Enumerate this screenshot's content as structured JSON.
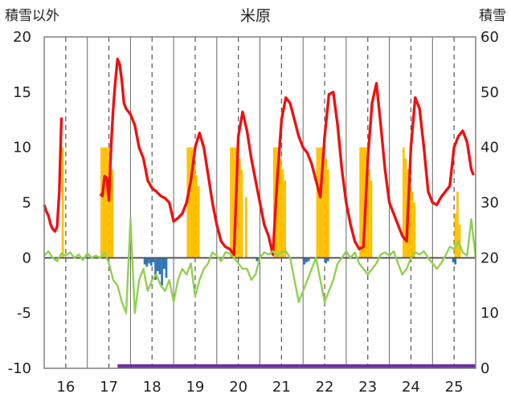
{
  "chart_data": {
    "type": "line",
    "title": "米原",
    "y_left_label": "積雪以外",
    "y_right_label": "積雪",
    "y_left_ticks": [
      "20",
      "15",
      "10",
      "5",
      "0",
      "-5",
      "-10"
    ],
    "y_right_ticks": [
      "60",
      "50",
      "40",
      "30",
      "20",
      "10",
      "0"
    ],
    "x_tick_labels": [
      "16",
      "17",
      "18",
      "19",
      "20",
      "21",
      "22",
      "23",
      "24",
      "25"
    ],
    "ylim_left": [
      -10,
      20
    ],
    "ylim_right": [
      0,
      60
    ],
    "xlim": [
      15.5,
      25.5
    ],
    "grid": {
      "x": "dashed",
      "y": "none"
    },
    "colors": {
      "red_series": "#ee1111",
      "green_series": "#92d050",
      "orange_bars": "#ffc000",
      "blue_bars": "#2e75b6",
      "purple_band": "#7030a0",
      "grid": "#555555",
      "frame": "#808080"
    },
    "series": [
      {
        "color": "red",
        "axis": "left",
        "x": [
          15.5,
          15.55,
          15.6,
          15.65,
          15.7,
          15.75,
          15.8,
          15.85,
          15.9,
          16.0,
          16.8,
          16.85,
          16.9,
          16.95,
          17.0,
          17.05,
          17.1,
          17.15,
          17.2,
          17.25,
          17.3,
          17.35,
          17.4,
          17.5,
          17.6,
          17.7,
          17.8,
          17.9,
          18.0,
          18.1,
          18.2,
          18.3,
          18.4,
          18.5,
          18.6,
          18.7,
          18.8,
          18.9,
          19.0,
          19.1,
          19.2,
          19.3,
          19.4,
          19.5,
          19.6,
          19.7,
          19.8,
          19.9,
          20.0,
          20.1,
          20.2,
          20.3,
          20.4,
          20.5,
          20.6,
          20.7,
          20.8,
          20.9,
          21.0,
          21.1,
          21.2,
          21.3,
          21.4,
          21.5,
          21.6,
          21.7,
          21.8,
          21.9,
          22.0,
          22.1,
          22.2,
          22.3,
          22.4,
          22.5,
          22.6,
          22.7,
          22.8,
          22.9,
          23.0,
          23.1,
          23.2,
          23.3,
          23.4,
          23.5,
          23.6,
          23.7,
          23.8,
          23.9,
          24.0,
          24.1,
          24.2,
          24.3,
          24.4,
          24.5,
          24.6,
          24.7,
          24.8,
          24.9,
          25.0,
          25.1,
          25.2,
          25.3,
          25.4,
          25.45
        ],
        "y": [
          4.8,
          4.2,
          3.8,
          3.0,
          2.6,
          2.4,
          2.8,
          6.0,
          12.7,
          null,
          5.8,
          5.6,
          7.4,
          7.2,
          5.2,
          10.0,
          13.5,
          16.0,
          18.0,
          17.5,
          16.0,
          14.0,
          13.5,
          13.0,
          12.0,
          10.0,
          9.0,
          7.0,
          6.3,
          6.0,
          5.6,
          5.4,
          5.0,
          3.3,
          3.6,
          4.0,
          5.0,
          7.0,
          10.0,
          11.3,
          10.0,
          7.5,
          5.0,
          3.0,
          1.5,
          1.0,
          0.8,
          0.3,
          11.0,
          13.2,
          11.5,
          9.0,
          7.0,
          5.0,
          3.0,
          2.0,
          0.3,
          7.0,
          12.5,
          14.5,
          14.0,
          12.5,
          11.0,
          10.0,
          9.5,
          8.5,
          7.0,
          5.5,
          11.0,
          14.8,
          15.0,
          12.0,
          8.0,
          5.0,
          3.0,
          1.5,
          0.8,
          1.0,
          9.0,
          14.0,
          15.8,
          12.0,
          8.0,
          5.0,
          4.0,
          3.0,
          2.0,
          1.5,
          10.0,
          14.5,
          13.5,
          10.0,
          6.0,
          5.0,
          4.8,
          5.5,
          6.0,
          6.5,
          10.0,
          11.0,
          11.5,
          10.5,
          8.0,
          7.5
        ]
      },
      {
        "color": "green",
        "axis": "left",
        "x": [
          15.5,
          15.6,
          15.7,
          15.8,
          15.9,
          16.0,
          16.1,
          16.2,
          16.3,
          16.4,
          16.5,
          16.6,
          16.7,
          16.8,
          16.9,
          17.0,
          17.1,
          17.2,
          17.3,
          17.4,
          17.5,
          17.6,
          17.7,
          17.8,
          17.9,
          18.0,
          18.1,
          18.2,
          18.3,
          18.4,
          18.5,
          18.6,
          18.7,
          18.8,
          18.9,
          19.0,
          19.1,
          19.2,
          19.3,
          19.4,
          19.5,
          19.6,
          19.7,
          19.8,
          19.9,
          20.0,
          20.1,
          20.2,
          20.3,
          20.4,
          20.5,
          20.6,
          20.7,
          20.8,
          20.9,
          21.0,
          21.1,
          21.2,
          21.3,
          21.4,
          21.5,
          21.6,
          21.7,
          21.8,
          21.9,
          22.0,
          22.1,
          22.2,
          22.3,
          22.4,
          22.5,
          22.6,
          22.7,
          22.8,
          22.9,
          23.0,
          23.1,
          23.2,
          23.3,
          23.4,
          23.5,
          23.6,
          23.7,
          23.8,
          23.9,
          24.0,
          24.1,
          24.2,
          24.3,
          24.4,
          24.5,
          24.6,
          24.7,
          24.8,
          24.9,
          25.0,
          25.1,
          25.2,
          25.3,
          25.4,
          25.5
        ],
        "y": [
          0.2,
          0.6,
          0.0,
          -0.3,
          0.4,
          0.2,
          0.5,
          0.0,
          0.3,
          -0.2,
          0.4,
          0.0,
          0.2,
          0.0,
          0.5,
          -0.5,
          -2.0,
          -2.5,
          -4.0,
          -5.0,
          3.5,
          -5.0,
          -2.0,
          -1.0,
          -3.0,
          -2.0,
          -1.5,
          -2.5,
          -3.0,
          -2.0,
          -4.0,
          -2.0,
          -1.0,
          -1.5,
          -0.5,
          -3.5,
          -2.0,
          -1.0,
          -0.5,
          0.5,
          0.2,
          -0.3,
          0.5,
          0.4,
          0.0,
          -0.5,
          -1.0,
          -1.0,
          -2.0,
          -1.5,
          0.0,
          0.5,
          0.3,
          0.6,
          0.2,
          0.5,
          0.6,
          0.0,
          -2.0,
          -4.0,
          -3.0,
          -2.0,
          -1.0,
          0.0,
          -2.0,
          -4.0,
          -3.0,
          -2.0,
          -0.5,
          0.0,
          0.6,
          0.0,
          0.5,
          -0.5,
          -1.0,
          -1.5,
          -1.0,
          -0.5,
          0.3,
          0.5,
          0.2,
          0.6,
          -0.5,
          -1.5,
          -1.0,
          0.0,
          0.5,
          0.3,
          0.6,
          0.0,
          -0.5,
          -1.0,
          -0.5,
          0.2,
          1.0,
          0.8,
          1.5,
          0.5,
          0.2,
          3.5,
          0.0
        ]
      }
    ],
    "bars": [
      {
        "color": "orange",
        "axis": "right",
        "x": [
          15.93,
          16.83,
          16.88,
          16.93,
          16.98,
          17.03,
          17.08,
          18.83,
          18.88,
          18.93,
          18.98,
          19.03,
          19.08,
          19.83,
          19.88,
          19.93,
          19.98,
          20.03,
          20.08,
          20.18,
          20.83,
          20.88,
          20.93,
          20.98,
          21.03,
          21.08,
          21.83,
          21.88,
          21.93,
          21.98,
          22.03,
          22.08,
          22.83,
          22.88,
          22.93,
          22.98,
          23.03,
          23.08,
          23.83,
          23.88,
          23.93,
          23.98,
          24.03,
          24.08,
          25.03,
          25.08,
          25.13
        ],
        "y": [
          40,
          40,
          40,
          40,
          40,
          38,
          36,
          40,
          40,
          40,
          37,
          35,
          33,
          40,
          40,
          40,
          40,
          38,
          36,
          31,
          40,
          40,
          40,
          38,
          36,
          34,
          40,
          40,
          40,
          40,
          38,
          36,
          40,
          40,
          40,
          40,
          36,
          34,
          40,
          38,
          36,
          34,
          32,
          30,
          28,
          32,
          26
        ]
      },
      {
        "color": "blue",
        "axis": "left",
        "x": [
          17.83,
          17.88,
          17.93,
          17.98,
          18.03,
          18.08,
          18.13,
          18.18,
          18.23,
          18.28,
          18.33,
          20.43,
          20.48,
          21.53,
          21.58,
          21.63,
          22.03,
          22.08,
          24.98,
          25.03
        ],
        "y": [
          -0.6,
          -0.8,
          -0.5,
          -0.7,
          -0.4,
          -2.0,
          -1.2,
          -1.5,
          -2.5,
          -1.0,
          -1.8,
          -0.3,
          -0.5,
          -0.6,
          -0.4,
          -0.3,
          -0.5,
          -0.3,
          -0.4,
          -0.6
        ]
      },
      {
        "color": "purple",
        "axis": "left",
        "x": [
          17.2,
          25.5
        ],
        "y": [
          -10,
          -10
        ]
      }
    ]
  }
}
